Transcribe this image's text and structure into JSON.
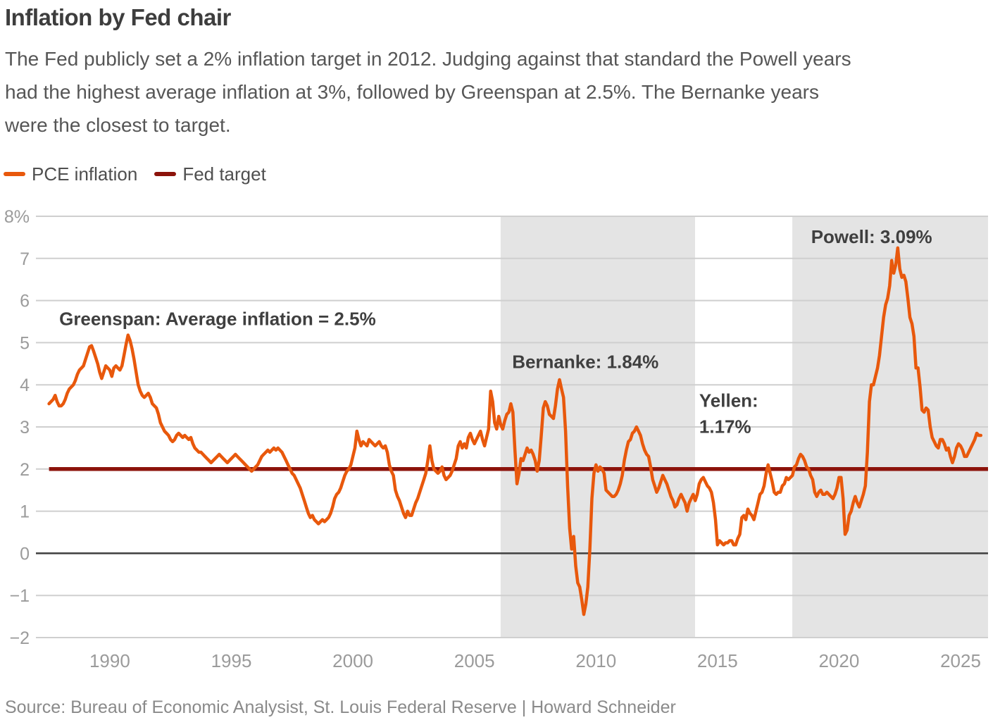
{
  "header": {
    "title": "Inflation by Fed chair",
    "subtitle_lines": [
      "The Fed publicly set a 2% inflation target in 2012. Judging against that standard the Powell years",
      "had the highest average inflation at 3%, followed by Greenspan at 2.5%. The Bernanke years",
      "were the closest to target."
    ]
  },
  "legend": {
    "items": [
      {
        "label": "PCE inflation",
        "color": "#E8580C"
      },
      {
        "label": "Fed target",
        "color": "#8C130B"
      }
    ]
  },
  "source": "Source: Bureau of Economic Analysist, St. Louis Federal Reserve | Howard Schneider",
  "chart_data": {
    "type": "line",
    "title": "Inflation by Fed chair",
    "xlabel": "",
    "ylabel": "",
    "grid": true,
    "legend_position": "top-left",
    "xlim": [
      1986.96,
      2026.13
    ],
    "ylim": [
      -2,
      8
    ],
    "yticks": [
      {
        "v": 8,
        "label": "8%"
      },
      {
        "v": 7,
        "label": "7"
      },
      {
        "v": 6,
        "label": "6"
      },
      {
        "v": 5,
        "label": "5"
      },
      {
        "v": 4,
        "label": "4"
      },
      {
        "v": 3,
        "label": "3"
      },
      {
        "v": 2,
        "label": "2"
      },
      {
        "v": 1,
        "label": "1"
      },
      {
        "v": 0,
        "label": "0"
      },
      {
        "v": -1,
        "label": "−1"
      },
      {
        "v": -2,
        "label": "−2"
      }
    ],
    "xticks": [
      {
        "v": 1990,
        "label": "1990"
      },
      {
        "v": 1995,
        "label": "1995"
      },
      {
        "v": 2000,
        "label": "2000"
      },
      {
        "v": 2005,
        "label": "2005"
      },
      {
        "v": 2010,
        "label": "2010"
      },
      {
        "v": 2015,
        "label": "2015"
      },
      {
        "v": 2020,
        "label": "2020"
      },
      {
        "v": 2025,
        "label": "2025"
      }
    ],
    "zero_line": {
      "value": 0,
      "color": "#3f3f3f"
    },
    "bands": [
      {
        "name": "Bernanke term",
        "from": 2006.08,
        "to": 2014.08,
        "color": "#e4e4e4"
      },
      {
        "name": "Powell term",
        "from": 2018.08,
        "to": 2026.13,
        "color": "#e4e4e4"
      }
    ],
    "fed_target": {
      "label": "Fed target",
      "value": 2,
      "from": 1987.5,
      "color": "#8C130B"
    },
    "annotations": [
      {
        "id": "greenspan",
        "lines": [
          "Greenspan: Average inflation = 2.5%"
        ],
        "x": 1987.92,
        "y": 5.82
      },
      {
        "id": "bernanke",
        "lines": [
          "Bernanke: 1.84%"
        ],
        "x": 2006.55,
        "y": 4.8
      },
      {
        "id": "yellen",
        "lines": [
          "Yellen:",
          "1.17%"
        ],
        "x": 2014.25,
        "y": 3.88
      },
      {
        "id": "powell",
        "lines": [
          "Powell: 3.09%"
        ],
        "x": 2018.85,
        "y": 7.77
      }
    ],
    "series": [
      {
        "name": "PCE inflation",
        "color": "#E8580C",
        "start": 1987.5,
        "step_months": 1,
        "values": [
          3.55,
          3.6,
          3.65,
          3.75,
          3.6,
          3.5,
          3.5,
          3.55,
          3.65,
          3.8,
          3.9,
          3.95,
          4.0,
          4.1,
          4.25,
          4.35,
          4.4,
          4.45,
          4.6,
          4.75,
          4.9,
          4.93,
          4.8,
          4.65,
          4.5,
          4.3,
          4.15,
          4.3,
          4.45,
          4.4,
          4.35,
          4.2,
          4.4,
          4.45,
          4.4,
          4.35,
          4.45,
          4.7,
          4.95,
          5.18,
          5.05,
          4.85,
          4.6,
          4.3,
          4.0,
          3.85,
          3.75,
          3.7,
          3.75,
          3.8,
          3.7,
          3.55,
          3.5,
          3.45,
          3.3,
          3.1,
          3.0,
          2.9,
          2.85,
          2.8,
          2.7,
          2.65,
          2.7,
          2.8,
          2.85,
          2.8,
          2.75,
          2.8,
          2.75,
          2.7,
          2.75,
          2.6,
          2.5,
          2.45,
          2.4,
          2.4,
          2.35,
          2.3,
          2.25,
          2.2,
          2.15,
          2.2,
          2.25,
          2.3,
          2.35,
          2.3,
          2.25,
          2.2,
          2.15,
          2.2,
          2.25,
          2.3,
          2.35,
          2.3,
          2.25,
          2.2,
          2.15,
          2.1,
          2.05,
          2.0,
          1.95,
          2.0,
          2.05,
          2.1,
          2.2,
          2.3,
          2.35,
          2.4,
          2.45,
          2.4,
          2.45,
          2.5,
          2.45,
          2.5,
          2.45,
          2.4,
          2.3,
          2.2,
          2.1,
          2.0,
          1.9,
          1.85,
          1.75,
          1.65,
          1.55,
          1.4,
          1.25,
          1.1,
          0.95,
          0.85,
          0.9,
          0.8,
          0.75,
          0.7,
          0.75,
          0.8,
          0.75,
          0.8,
          0.85,
          0.95,
          1.1,
          1.3,
          1.4,
          1.45,
          1.55,
          1.7,
          1.85,
          1.95,
          2.0,
          2.1,
          2.3,
          2.5,
          2.9,
          2.7,
          2.55,
          2.65,
          2.6,
          2.55,
          2.7,
          2.65,
          2.6,
          2.55,
          2.6,
          2.65,
          2.55,
          2.5,
          2.55,
          2.4,
          2.1,
          1.95,
          1.85,
          1.5,
          1.35,
          1.25,
          1.1,
          0.95,
          0.85,
          1.0,
          0.9,
          0.9,
          1.05,
          1.2,
          1.3,
          1.45,
          1.6,
          1.75,
          1.9,
          2.2,
          2.55,
          2.2,
          2.0,
          1.95,
          1.9,
          1.95,
          2.05,
          1.85,
          1.75,
          1.8,
          1.85,
          1.95,
          2.1,
          2.25,
          2.55,
          2.65,
          2.5,
          2.6,
          2.5,
          2.75,
          2.85,
          2.7,
          2.6,
          2.7,
          2.8,
          2.9,
          2.7,
          2.55,
          2.75,
          2.95,
          3.85,
          3.6,
          3.1,
          2.95,
          3.25,
          3.05,
          2.95,
          3.15,
          3.3,
          3.35,
          3.55,
          3.35,
          2.45,
          1.65,
          1.9,
          2.25,
          2.2,
          2.35,
          2.5,
          2.4,
          2.45,
          2.35,
          2.2,
          1.95,
          2.2,
          2.8,
          3.45,
          3.6,
          3.5,
          3.3,
          3.25,
          3.2,
          3.5,
          3.9,
          4.12,
          3.9,
          3.7,
          2.9,
          1.6,
          0.6,
          0.1,
          0.4,
          -0.3,
          -0.7,
          -0.8,
          -1.1,
          -1.45,
          -1.2,
          -0.8,
          0.1,
          1.3,
          1.9,
          2.1,
          1.95,
          2.05,
          2.0,
          1.9,
          1.5,
          1.45,
          1.4,
          1.35,
          1.35,
          1.4,
          1.5,
          1.65,
          1.85,
          2.2,
          2.45,
          2.65,
          2.7,
          2.85,
          2.9,
          3.0,
          2.9,
          2.8,
          2.6,
          2.45,
          2.35,
          2.3,
          2.05,
          1.75,
          1.6,
          1.45,
          1.55,
          1.7,
          1.85,
          1.75,
          1.65,
          1.5,
          1.35,
          1.25,
          1.1,
          1.15,
          1.3,
          1.4,
          1.3,
          1.2,
          1.0,
          1.2,
          1.3,
          1.4,
          1.25,
          1.4,
          1.65,
          1.75,
          1.8,
          1.7,
          1.6,
          1.55,
          1.45,
          1.2,
          0.8,
          0.2,
          0.3,
          0.25,
          0.2,
          0.25,
          0.25,
          0.3,
          0.3,
          0.2,
          0.2,
          0.35,
          0.45,
          0.85,
          0.9,
          0.8,
          1.05,
          0.95,
          0.9,
          0.8,
          1.0,
          1.2,
          1.4,
          1.45,
          1.6,
          1.9,
          2.1,
          1.9,
          1.7,
          1.45,
          1.4,
          1.45,
          1.45,
          1.6,
          1.65,
          1.8,
          1.75,
          1.8,
          1.85,
          2.05,
          2.1,
          2.25,
          2.35,
          2.3,
          2.2,
          2.05,
          2.0,
          1.85,
          1.75,
          1.45,
          1.35,
          1.45,
          1.5,
          1.4,
          1.4,
          1.45,
          1.4,
          1.35,
          1.3,
          1.4,
          1.55,
          1.8,
          1.8,
          1.3,
          0.45,
          0.55,
          0.9,
          1.0,
          1.2,
          1.35,
          1.2,
          1.1,
          1.25,
          1.4,
          1.6,
          2.4,
          3.6,
          4.0,
          4.0,
          4.2,
          4.4,
          4.7,
          5.15,
          5.6,
          5.9,
          6.05,
          6.35,
          6.95,
          6.65,
          6.85,
          7.25,
          6.75,
          6.55,
          6.6,
          6.45,
          6.05,
          5.6,
          5.45,
          5.15,
          4.4,
          4.4,
          3.95,
          3.4,
          3.35,
          3.45,
          3.4,
          3.0,
          2.75,
          2.65,
          2.55,
          2.5,
          2.7,
          2.7,
          2.6,
          2.45,
          2.5,
          2.3,
          2.15,
          2.3,
          2.5,
          2.6,
          2.55,
          2.45,
          2.3,
          2.3,
          2.4,
          2.5,
          2.6,
          2.7,
          2.85,
          2.8,
          2.8
        ]
      }
    ]
  }
}
